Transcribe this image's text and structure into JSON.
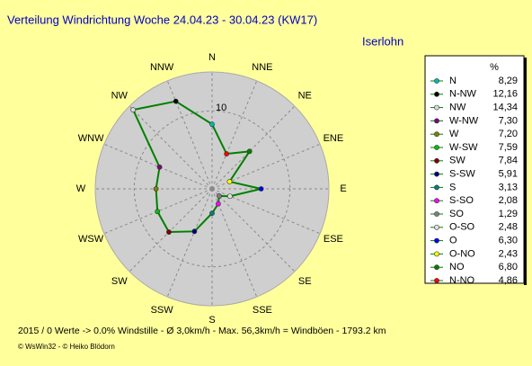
{
  "chart_data": {
    "type": "radar",
    "title": "Verteilung Windrichtung   Woche 24.04.23 - 30.04.23 (KW17)",
    "subtitle": "Iserlohn",
    "direction_labels": [
      "N",
      "NNE",
      "NE",
      "ENE",
      "E",
      "ESE",
      "SE",
      "SSE",
      "S",
      "SSW",
      "SW",
      "WSW",
      "W",
      "WNW",
      "NW",
      "NNW"
    ],
    "categories": [
      "N",
      "N-NW",
      "NW",
      "W-NW",
      "W",
      "W-SW",
      "SW",
      "S-SW",
      "S",
      "S-SO",
      "SO",
      "O-SO",
      "O",
      "O-NO",
      "NO",
      "N-NO"
    ],
    "values": [
      8.29,
      12.16,
      14.34,
      7.3,
      7.2,
      7.59,
      7.84,
      5.91,
      3.13,
      2.08,
      1.29,
      2.48,
      6.3,
      2.43,
      6.8,
      4.86
    ],
    "value_labels": [
      "8,29",
      "12,16",
      "14,34",
      "7,30",
      "7,20",
      "7,59",
      "7,84",
      "5,91",
      "3,13",
      "2,08",
      "1,29",
      "2,48",
      "6,30",
      "2,43",
      "6,80",
      "4,86"
    ],
    "colors": [
      "#00b8b8",
      "#000000",
      "#d8d8d8",
      "#800080",
      "#808000",
      "#00c000",
      "#800000",
      "#000080",
      "#008080",
      "#ff00ff",
      "#808080",
      "#e0e0e0",
      "#0000ff",
      "#ffff00",
      "#008000",
      "#ff0000"
    ],
    "line_color": "#008000",
    "legend_title": "%",
    "rlim": [
      0,
      15
    ],
    "rticks": [
      10
    ],
    "footer": "2015 / 0 Werte  -> 0.0% Windstille   -   Ø 3,0km/h   -   Max. 56,3km/h = Windböen   -    1793.2 km",
    "credit": "© WsWin32  -  © Heiko Blödorn"
  }
}
